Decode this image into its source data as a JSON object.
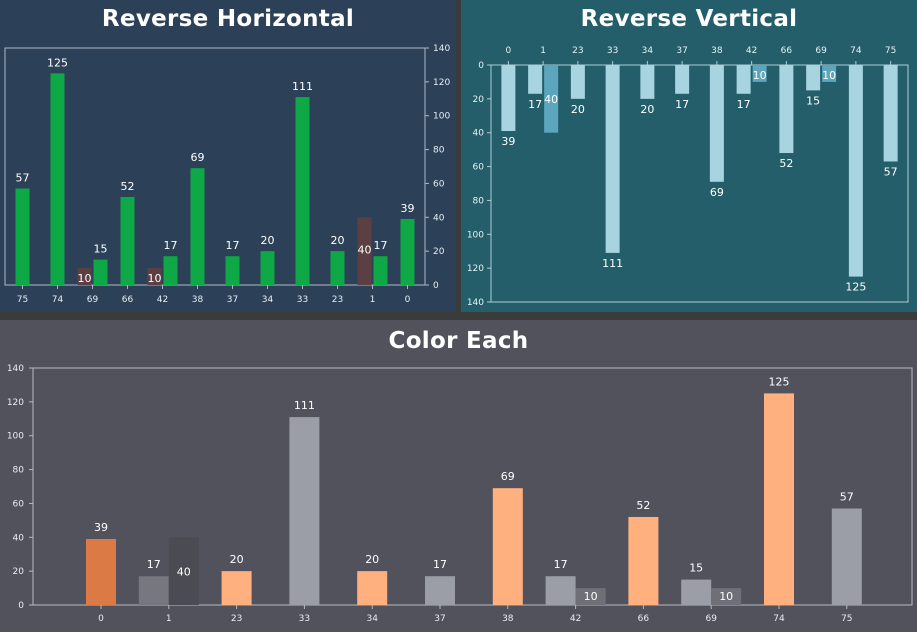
{
  "colors": {
    "green": "#0fa847",
    "green_dim": "#5b3f43",
    "light_blue": "#a7d4e0",
    "light_blue_dim": "#5ba5bd",
    "orange_first": "#dc7a45",
    "orange": "#ffb07e",
    "gray": "#9c9ea7",
    "gray_dim": "#4a4b53",
    "gray_mid": "#76777f",
    "gray_dark": "#6e6f77"
  },
  "chart_data": [
    {
      "type": "bar",
      "title": "Reverse Horizontal",
      "categories": [
        "0",
        "1",
        "23",
        "33",
        "34",
        "37",
        "38",
        "42",
        "66",
        "69",
        "74",
        "75"
      ],
      "series": [
        {
          "values": [
            39,
            17,
            20,
            111,
            20,
            17,
            69,
            17,
            52,
            15,
            125,
            57
          ]
        },
        {
          "values": [
            null,
            40,
            null,
            null,
            null,
            null,
            null,
            10,
            null,
            10,
            null,
            null
          ]
        }
      ],
      "x_reversed": true,
      "y_axis_side": "right",
      "ylim": [
        0,
        140
      ],
      "yticks": [
        0,
        20,
        40,
        60,
        80,
        100,
        120,
        140
      ],
      "grid": false,
      "legend": "none"
    },
    {
      "type": "bar",
      "title": "Reverse Vertical",
      "categories": [
        "0",
        "1",
        "23",
        "33",
        "34",
        "37",
        "38",
        "42",
        "66",
        "69",
        "74",
        "75"
      ],
      "series": [
        {
          "values": [
            39,
            17,
            20,
            111,
            20,
            17,
            69,
            17,
            52,
            15,
            125,
            57
          ]
        },
        {
          "values": [
            null,
            40,
            null,
            null,
            null,
            null,
            null,
            10,
            null,
            10,
            null,
            null
          ]
        }
      ],
      "y_reversed": true,
      "x_axis_side": "top",
      "ylim": [
        0,
        140
      ],
      "yticks": [
        0,
        20,
        40,
        60,
        80,
        100,
        120,
        140
      ],
      "grid": false,
      "legend": "none"
    },
    {
      "type": "bar",
      "title": "Color Each",
      "categories": [
        "0",
        "1",
        "23",
        "33",
        "34",
        "37",
        "38",
        "42",
        "66",
        "69",
        "74",
        "75"
      ],
      "series": [
        {
          "values": [
            39,
            17,
            20,
            111,
            20,
            17,
            69,
            17,
            52,
            15,
            125,
            57
          ]
        },
        {
          "values": [
            null,
            40,
            null,
            null,
            null,
            null,
            null,
            10,
            null,
            10,
            null,
            null
          ]
        }
      ],
      "color_each": true,
      "ylim": [
        0,
        140
      ],
      "yticks": [
        0,
        20,
        40,
        60,
        80,
        100,
        120,
        140
      ],
      "grid": false,
      "legend": "none"
    }
  ]
}
